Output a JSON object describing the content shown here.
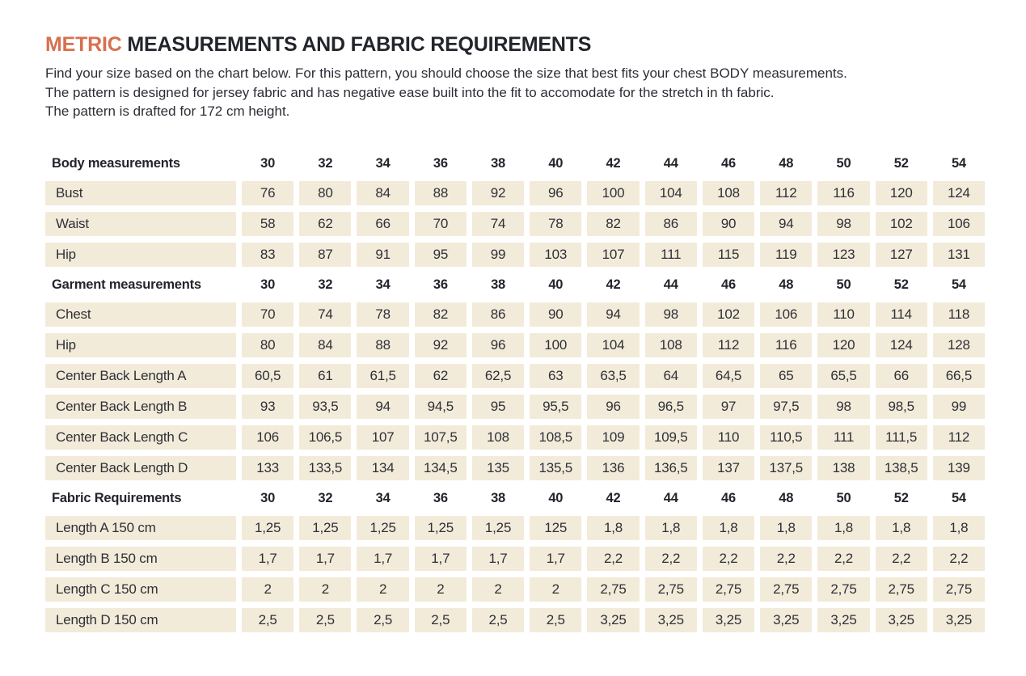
{
  "header": {
    "title_accent": "METRIC",
    "title_rest": "MEASUREMENTS AND FABRIC REQUIREMENTS",
    "intro_lines": [
      "Find your size based on the chart below. For this pattern, you should choose the size that best fits your chest BODY measurements.",
      "The pattern is designed for jersey fabric and has negative ease built into the fit to accomodate for the stretch in th fabric.",
      "The pattern is drafted for 172 cm height."
    ]
  },
  "colors": {
    "accent": "#d8704e",
    "cell_bg": "#f3ebd9",
    "text": "#2e3038"
  },
  "table": {
    "sizes": [
      "30",
      "32",
      "34",
      "36",
      "38",
      "40",
      "42",
      "44",
      "46",
      "48",
      "50",
      "52",
      "54"
    ],
    "sections": [
      {
        "header": "Body measurements",
        "rows": [
          {
            "label": "Bust",
            "values": [
              "76",
              "80",
              "84",
              "88",
              "92",
              "96",
              "100",
              "104",
              "108",
              "112",
              "116",
              "120",
              "124"
            ]
          },
          {
            "label": "Waist",
            "values": [
              "58",
              "62",
              "66",
              "70",
              "74",
              "78",
              "82",
              "86",
              "90",
              "94",
              "98",
              "102",
              "106"
            ]
          },
          {
            "label": "Hip",
            "values": [
              "83",
              "87",
              "91",
              "95",
              "99",
              "103",
              "107",
              "111",
              "115",
              "119",
              "123",
              "127",
              "131"
            ]
          }
        ]
      },
      {
        "header": "Garment measurements",
        "rows": [
          {
            "label": "Chest",
            "values": [
              "70",
              "74",
              "78",
              "82",
              "86",
              "90",
              "94",
              "98",
              "102",
              "106",
              "110",
              "114",
              "118"
            ]
          },
          {
            "label": "Hip",
            "values": [
              "80",
              "84",
              "88",
              "92",
              "96",
              "100",
              "104",
              "108",
              "112",
              "116",
              "120",
              "124",
              "128"
            ]
          },
          {
            "label": "Center Back Length A",
            "values": [
              "60,5",
              "61",
              "61,5",
              "62",
              "62,5",
              "63",
              "63,5",
              "64",
              "64,5",
              "65",
              "65,5",
              "66",
              "66,5"
            ]
          },
          {
            "label": "Center Back Length B",
            "values": [
              "93",
              "93,5",
              "94",
              "94,5",
              "95",
              "95,5",
              "96",
              "96,5",
              "97",
              "97,5",
              "98",
              "98,5",
              "99"
            ]
          },
          {
            "label": "Center Back Length C",
            "values": [
              "106",
              "106,5",
              "107",
              "107,5",
              "108",
              "108,5",
              "109",
              "109,5",
              "110",
              "110,5",
              "111",
              "111,5",
              "112"
            ]
          },
          {
            "label": "Center Back Length D",
            "values": [
              "133",
              "133,5",
              "134",
              "134,5",
              "135",
              "135,5",
              "136",
              "136,5",
              "137",
              "137,5",
              "138",
              "138,5",
              "139"
            ]
          }
        ]
      },
      {
        "header": "Fabric Requirements",
        "rows": [
          {
            "label": "Length A 150 cm",
            "values": [
              "1,25",
              "1,25",
              "1,25",
              "1,25",
              "1,25",
              "125",
              "1,8",
              "1,8",
              "1,8",
              "1,8",
              "1,8",
              "1,8",
              "1,8"
            ]
          },
          {
            "label": "Length B 150 cm",
            "values": [
              "1,7",
              "1,7",
              "1,7",
              "1,7",
              "1,7",
              "1,7",
              "2,2",
              "2,2",
              "2,2",
              "2,2",
              "2,2",
              "2,2",
              "2,2"
            ]
          },
          {
            "label": "Length C 150 cm",
            "values": [
              "2",
              "2",
              "2",
              "2",
              "2",
              "2",
              "2,75",
              "2,75",
              "2,75",
              "2,75",
              "2,75",
              "2,75",
              "2,75"
            ]
          },
          {
            "label": "Length D 150 cm",
            "values": [
              "2,5",
              "2,5",
              "2,5",
              "2,5",
              "2,5",
              "2,5",
              "3,25",
              "3,25",
              "3,25",
              "3,25",
              "3,25",
              "3,25",
              "3,25"
            ]
          }
        ]
      }
    ]
  }
}
